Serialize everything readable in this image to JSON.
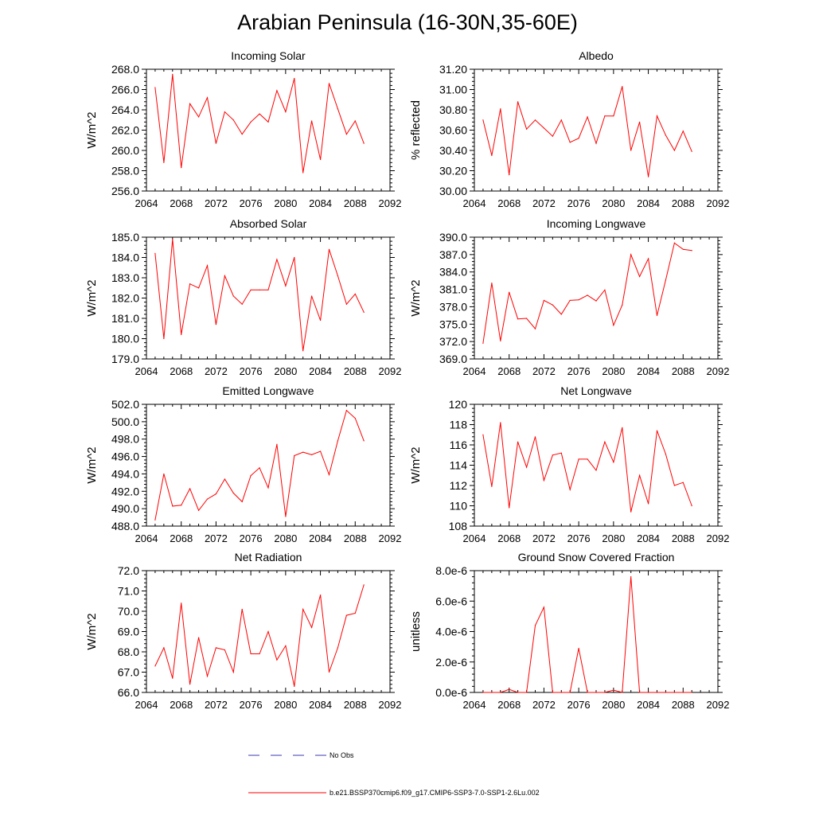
{
  "page": {
    "title": "Arabian Peninsula (16-30N,35-60E)"
  },
  "legend": {
    "obs_label": "No Obs",
    "model_label": "b.e21.BSSP370cmip6.f09_g17.CMIP6-SSP3-7.0-SSP1-2.6Lu.002",
    "obs_color": "#3b3bb3",
    "model_color": "#ff0000"
  },
  "chart_data": [
    {
      "type": "line",
      "title": "Incoming Solar",
      "ylabel": "W/m^2",
      "xlim": [
        2064,
        2092
      ],
      "ylim": [
        256.0,
        268.0
      ],
      "xticks": [
        2064,
        2068,
        2072,
        2076,
        2080,
        2084,
        2088,
        2092
      ],
      "xtick_labels": [
        "2064",
        "2068",
        "2072",
        "2076",
        "2080",
        "2084",
        "2088",
        "2092"
      ],
      "yticks": [
        256,
        258,
        260,
        262,
        264,
        266,
        268
      ],
      "ytick_labels": [
        "256.0",
        "258.0",
        "260.0",
        "262.0",
        "264.0",
        "266.0",
        "268.0"
      ],
      "x": [
        2065,
        2066,
        2067,
        2068,
        2069,
        2070,
        2071,
        2072,
        2073,
        2074,
        2075,
        2076,
        2077,
        2078,
        2079,
        2080,
        2081,
        2082,
        2083,
        2084,
        2085,
        2086,
        2087,
        2088,
        2089
      ],
      "series": [
        {
          "values": [
            266.2,
            258.8,
            267.5,
            258.3,
            264.6,
            263.3,
            265.2,
            260.7,
            263.8,
            263.0,
            261.6,
            262.8,
            263.6,
            262.8,
            265.9,
            263.8,
            267.1,
            257.8,
            262.9,
            259.1,
            266.6,
            264.1,
            261.6,
            262.9,
            260.7
          ]
        }
      ]
    },
    {
      "type": "line",
      "title": "Albedo",
      "ylabel": "% reflected",
      "xlim": [
        2064,
        2092
      ],
      "ylim": [
        30.0,
        31.2
      ],
      "xticks": [
        2064,
        2068,
        2072,
        2076,
        2080,
        2084,
        2088,
        2092
      ],
      "xtick_labels": [
        "2064",
        "2068",
        "2072",
        "2076",
        "2080",
        "2084",
        "2088",
        "2092"
      ],
      "yticks": [
        30.0,
        30.2,
        30.4,
        30.6,
        30.8,
        31.0,
        31.2
      ],
      "ytick_labels": [
        "30.00",
        "30.20",
        "30.40",
        "30.60",
        "30.80",
        "31.00",
        "31.20"
      ],
      "x": [
        2065,
        2066,
        2067,
        2068,
        2069,
        2070,
        2071,
        2072,
        2073,
        2074,
        2075,
        2076,
        2077,
        2078,
        2079,
        2080,
        2081,
        2082,
        2083,
        2084,
        2085,
        2086,
        2087,
        2088,
        2089
      ],
      "series": [
        {
          "values": [
            30.7,
            30.35,
            30.81,
            30.16,
            30.88,
            30.61,
            30.7,
            30.62,
            30.54,
            30.7,
            30.48,
            30.52,
            30.73,
            30.47,
            30.74,
            30.74,
            31.03,
            30.4,
            30.68,
            30.14,
            30.74,
            30.55,
            30.4,
            30.59,
            30.39
          ]
        }
      ]
    },
    {
      "type": "line",
      "title": "Absorbed Solar",
      "ylabel": "W/m^2",
      "xlim": [
        2064,
        2092
      ],
      "ylim": [
        179.0,
        185.0
      ],
      "xticks": [
        2064,
        2068,
        2072,
        2076,
        2080,
        2084,
        2088,
        2092
      ],
      "xtick_labels": [
        "2064",
        "2068",
        "2072",
        "2076",
        "2080",
        "2084",
        "2088",
        "2092"
      ],
      "yticks": [
        179,
        180,
        181,
        182,
        183,
        184,
        185
      ],
      "ytick_labels": [
        "179.0",
        "180.0",
        "181.0",
        "182.0",
        "183.0",
        "184.0",
        "185.0"
      ],
      "x": [
        2065,
        2066,
        2067,
        2068,
        2069,
        2070,
        2071,
        2072,
        2073,
        2074,
        2075,
        2076,
        2077,
        2078,
        2079,
        2080,
        2081,
        2082,
        2083,
        2084,
        2085,
        2086,
        2087,
        2088,
        2089
      ],
      "series": [
        {
          "values": [
            184.2,
            180.0,
            184.9,
            180.2,
            182.7,
            182.5,
            183.6,
            180.7,
            183.1,
            182.1,
            181.7,
            182.4,
            182.4,
            182.4,
            183.9,
            182.6,
            184.0,
            179.4,
            182.1,
            180.9,
            184.4,
            183.1,
            181.7,
            182.2,
            181.3
          ]
        }
      ]
    },
    {
      "type": "line",
      "title": "Incoming Longwave",
      "ylabel": "W/m^2",
      "xlim": [
        2064,
        2092
      ],
      "ylim": [
        369.0,
        390.0
      ],
      "xticks": [
        2064,
        2068,
        2072,
        2076,
        2080,
        2084,
        2088,
        2092
      ],
      "xtick_labels": [
        "2064",
        "2068",
        "2072",
        "2076",
        "2080",
        "2084",
        "2088",
        "2092"
      ],
      "yticks": [
        369,
        372,
        375,
        378,
        381,
        384,
        387,
        390
      ],
      "ytick_labels": [
        "369.0",
        "372.0",
        "375.0",
        "378.0",
        "381.0",
        "384.0",
        "387.0",
        "390.0"
      ],
      "x": [
        2065,
        2066,
        2067,
        2068,
        2069,
        2070,
        2071,
        2072,
        2073,
        2074,
        2075,
        2076,
        2077,
        2078,
        2079,
        2080,
        2081,
        2082,
        2083,
        2084,
        2085,
        2086,
        2087,
        2088,
        2089
      ],
      "series": [
        {
          "values": [
            371.7,
            382.1,
            372.1,
            380.5,
            375.9,
            376.0,
            374.2,
            379.1,
            378.3,
            376.7,
            379.1,
            379.2,
            380.0,
            379.0,
            380.9,
            374.8,
            378.3,
            387.0,
            383.2,
            386.3,
            376.5,
            382.6,
            389.0,
            387.9,
            387.7
          ]
        }
      ]
    },
    {
      "type": "line",
      "title": "Emitted Longwave",
      "ylabel": "W/m^2",
      "xlim": [
        2064,
        2092
      ],
      "ylim": [
        488.0,
        502.0
      ],
      "xticks": [
        2064,
        2068,
        2072,
        2076,
        2080,
        2084,
        2088,
        2092
      ],
      "xtick_labels": [
        "2064",
        "2068",
        "2072",
        "2076",
        "2080",
        "2084",
        "2088",
        "2092"
      ],
      "yticks": [
        488,
        490,
        492,
        494,
        496,
        498,
        500,
        502
      ],
      "ytick_labels": [
        "488.0",
        "490.0",
        "492.0",
        "494.0",
        "496.0",
        "498.0",
        "500.0",
        "502.0"
      ],
      "x": [
        2065,
        2066,
        2067,
        2068,
        2069,
        2070,
        2071,
        2072,
        2073,
        2074,
        2075,
        2076,
        2077,
        2078,
        2079,
        2080,
        2081,
        2082,
        2083,
        2084,
        2085,
        2086,
        2087,
        2088,
        2089
      ],
      "series": [
        {
          "values": [
            488.7,
            494.0,
            490.3,
            490.4,
            492.3,
            489.8,
            491.1,
            491.7,
            493.4,
            491.8,
            490.8,
            493.8,
            494.7,
            492.4,
            497.4,
            489.1,
            496.1,
            496.5,
            496.2,
            496.6,
            493.9,
            497.8,
            501.3,
            500.4,
            497.8
          ]
        }
      ]
    },
    {
      "type": "line",
      "title": "Net Longwave",
      "ylabel": "W/m^2",
      "xlim": [
        2064,
        2092
      ],
      "ylim": [
        108,
        120
      ],
      "xticks": [
        2064,
        2068,
        2072,
        2076,
        2080,
        2084,
        2088,
        2092
      ],
      "xtick_labels": [
        "2064",
        "2068",
        "2072",
        "2076",
        "2080",
        "2084",
        "2088",
        "2092"
      ],
      "yticks": [
        108,
        110,
        112,
        114,
        116,
        118,
        120
      ],
      "ytick_labels": [
        "108",
        "110",
        "112",
        "114",
        "116",
        "118",
        "120"
      ],
      "x": [
        2065,
        2066,
        2067,
        2068,
        2069,
        2070,
        2071,
        2072,
        2073,
        2074,
        2075,
        2076,
        2077,
        2078,
        2079,
        2080,
        2081,
        2082,
        2083,
        2084,
        2085,
        2086,
        2087,
        2088,
        2089
      ],
      "series": [
        {
          "values": [
            117.0,
            111.9,
            118.2,
            109.8,
            116.3,
            113.8,
            116.8,
            112.5,
            115.0,
            115.2,
            111.6,
            114.6,
            114.6,
            113.5,
            116.3,
            114.3,
            117.7,
            109.4,
            113.0,
            110.2,
            117.4,
            115.1,
            112.0,
            112.3,
            110.0
          ]
        }
      ]
    },
    {
      "type": "line",
      "title": "Net Radiation",
      "ylabel": "W/m^2",
      "xlim": [
        2064,
        2092
      ],
      "ylim": [
        66.0,
        72.0
      ],
      "xticks": [
        2064,
        2068,
        2072,
        2076,
        2080,
        2084,
        2088,
        2092
      ],
      "xtick_labels": [
        "2064",
        "2068",
        "2072",
        "2076",
        "2080",
        "2084",
        "2088",
        "2092"
      ],
      "yticks": [
        66,
        67,
        68,
        69,
        70,
        71,
        72
      ],
      "ytick_labels": [
        "66.0",
        "67.0",
        "68.0",
        "69.0",
        "70.0",
        "71.0",
        "72.0"
      ],
      "x": [
        2065,
        2066,
        2067,
        2068,
        2069,
        2070,
        2071,
        2072,
        2073,
        2074,
        2075,
        2076,
        2077,
        2078,
        2079,
        2080,
        2081,
        2082,
        2083,
        2084,
        2085,
        2086,
        2087,
        2088,
        2089
      ],
      "series": [
        {
          "values": [
            67.3,
            68.2,
            66.7,
            70.4,
            66.4,
            68.7,
            66.8,
            68.2,
            68.1,
            67.0,
            70.1,
            67.9,
            67.9,
            69.0,
            67.6,
            68.3,
            66.3,
            70.1,
            69.2,
            70.8,
            67.0,
            68.2,
            69.8,
            69.9,
            71.3
          ]
        }
      ]
    },
    {
      "type": "line",
      "title": "Ground Snow Covered Fraction",
      "ylabel": "unitless",
      "xlim": [
        2064,
        2092
      ],
      "ylim": [
        0,
        8e-06
      ],
      "xticks": [
        2064,
        2068,
        2072,
        2076,
        2080,
        2084,
        2088,
        2092
      ],
      "xtick_labels": [
        "2064",
        "2068",
        "2072",
        "2076",
        "2080",
        "2084",
        "2088",
        "2092"
      ],
      "yticks": [
        0,
        2e-06,
        4e-06,
        6e-06,
        8e-06
      ],
      "ytick_labels": [
        "0.0e-6",
        "2.0e-6",
        "4.0e-6",
        "6.0e-6",
        "8.0e-6"
      ],
      "x": [
        2065,
        2066,
        2067,
        2068,
        2069,
        2070,
        2071,
        2072,
        2073,
        2074,
        2075,
        2076,
        2077,
        2078,
        2079,
        2080,
        2081,
        2082,
        2083,
        2084,
        2085,
        2086,
        2087,
        2088,
        2089
      ],
      "series": [
        {
          "values": [
            0,
            0,
            0,
            2e-07,
            0,
            0,
            4.4e-06,
            5.6e-06,
            0,
            0,
            0,
            2.9e-06,
            0,
            0,
            0,
            1.5e-07,
            0,
            7.6e-06,
            0,
            0,
            0,
            0,
            0,
            0,
            0
          ]
        }
      ]
    }
  ]
}
